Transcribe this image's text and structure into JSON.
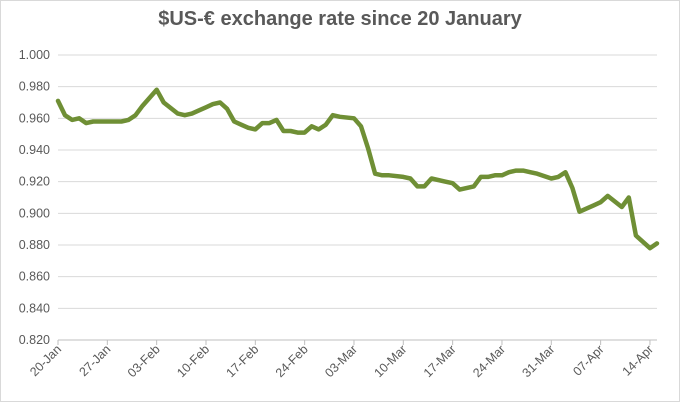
{
  "chart_data": {
    "type": "line",
    "title": "$US-€ exchange rate since 20 January",
    "xlabel": "",
    "ylabel": "",
    "x_tick_labels": [
      "20-Jan",
      "27-Jan",
      "03-Feb",
      "10-Feb",
      "17-Feb",
      "24-Feb",
      "03-Mar",
      "10-Mar",
      "17-Mar",
      "24-Mar",
      "31-Mar",
      "07-Apr",
      "14-Apr"
    ],
    "y_tick_labels": [
      "0.820",
      "0.840",
      "0.860",
      "0.880",
      "0.900",
      "0.920",
      "0.940",
      "0.960",
      "0.980",
      "1.000"
    ],
    "ylim": [
      0.82,
      1.0
    ],
    "x_range_days": [
      0,
      85
    ],
    "grid": "horizontal",
    "legend": "none",
    "line_color": "#6f8f35",
    "x_start_date": "2025-01-20",
    "series": [
      {
        "x": [
          0,
          1,
          2,
          3,
          4,
          5,
          9,
          10,
          11,
          12,
          14,
          15,
          17,
          18,
          19,
          20,
          21,
          22,
          23,
          24,
          25,
          26,
          27,
          28,
          29,
          30,
          31,
          32,
          33,
          34,
          35,
          36,
          37,
          38,
          39,
          40,
          42,
          43,
          44,
          45,
          46,
          47,
          49,
          50,
          51,
          52,
          53,
          55,
          56,
          57,
          59,
          60,
          61,
          62,
          63,
          64,
          65,
          66,
          67,
          68,
          70,
          71,
          72,
          73,
          74,
          75,
          76,
          77,
          78,
          80,
          81,
          82,
          84,
          85
        ],
        "values": [
          0.971,
          0.962,
          0.959,
          0.96,
          0.957,
          0.958,
          0.958,
          0.959,
          0.962,
          0.968,
          0.978,
          0.97,
          0.963,
          0.962,
          0.963,
          0.965,
          0.967,
          0.969,
          0.97,
          0.966,
          0.958,
          0.956,
          0.954,
          0.953,
          0.957,
          0.957,
          0.959,
          0.952,
          0.952,
          0.951,
          0.951,
          0.955,
          0.953,
          0.956,
          0.962,
          0.961,
          0.96,
          0.955,
          0.941,
          0.925,
          0.924,
          0.924,
          0.923,
          0.922,
          0.917,
          0.917,
          0.922,
          0.92,
          0.919,
          0.915,
          0.917,
          0.923,
          0.923,
          0.924,
          0.924,
          0.926,
          0.927,
          0.927,
          0.926,
          0.925,
          0.922,
          0.923,
          0.926,
          0.916,
          0.901,
          0.903,
          0.905,
          0.907,
          0.911,
          0.904,
          0.91,
          0.886,
          0.878,
          0.881
        ]
      }
    ]
  }
}
